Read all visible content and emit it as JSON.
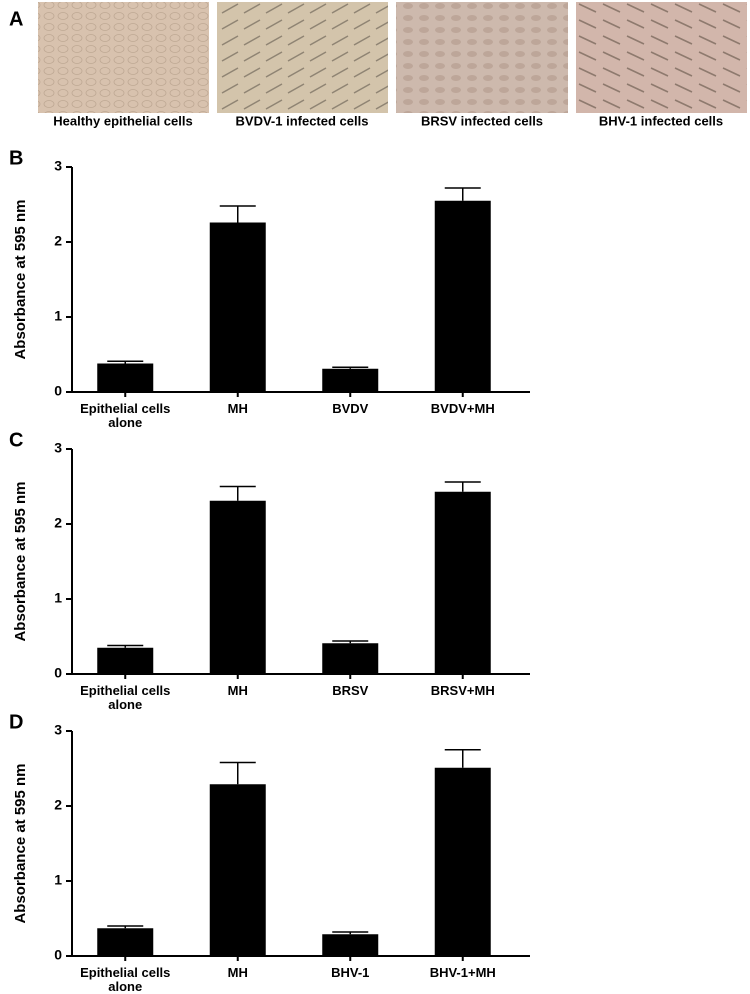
{
  "panel_a": {
    "label": "A",
    "images": [
      {
        "caption": "Healthy epithelial cells"
      },
      {
        "caption": "BVDV-1 infected cells"
      },
      {
        "caption": "BRSV infected cells"
      },
      {
        "caption": "BHV-1 infected cells"
      }
    ]
  },
  "chart_data": [
    {
      "type": "bar",
      "panel_label": "B",
      "y_label": "Absorbance at 595 nm",
      "categories": [
        "Epithelial cells alone",
        "MH",
        "BVDV",
        "BVDV+MH"
      ],
      "values": [
        0.38,
        2.26,
        0.31,
        2.55
      ],
      "errors": [
        0.03,
        0.22,
        0.02,
        0.17
      ],
      "color": "#000000",
      "ylim": [
        0,
        3
      ],
      "yticks": [
        0,
        1,
        2,
        3
      ]
    },
    {
      "type": "bar",
      "panel_label": "C",
      "y_label": "Absorbance at 595 nm",
      "categories": [
        "Epithelial cells alone",
        "MH",
        "BRSV",
        "BRSV+MH"
      ],
      "values": [
        0.35,
        2.31,
        0.41,
        2.43
      ],
      "errors": [
        0.03,
        0.19,
        0.03,
        0.13
      ],
      "color": "#000000",
      "ylim": [
        0,
        3
      ],
      "yticks": [
        0,
        1,
        2,
        3
      ]
    },
    {
      "type": "bar",
      "panel_label": "D",
      "y_label": "Absorbance at 595 nm",
      "categories": [
        "Epithelial cells alone",
        "MH",
        "BHV-1",
        "BHV-1+MH"
      ],
      "values": [
        0.37,
        2.29,
        0.29,
        2.51
      ],
      "errors": [
        0.03,
        0.29,
        0.03,
        0.24
      ],
      "color": "#000000",
      "ylim": [
        0,
        3
      ],
      "yticks": [
        0,
        1,
        2,
        3
      ]
    }
  ]
}
